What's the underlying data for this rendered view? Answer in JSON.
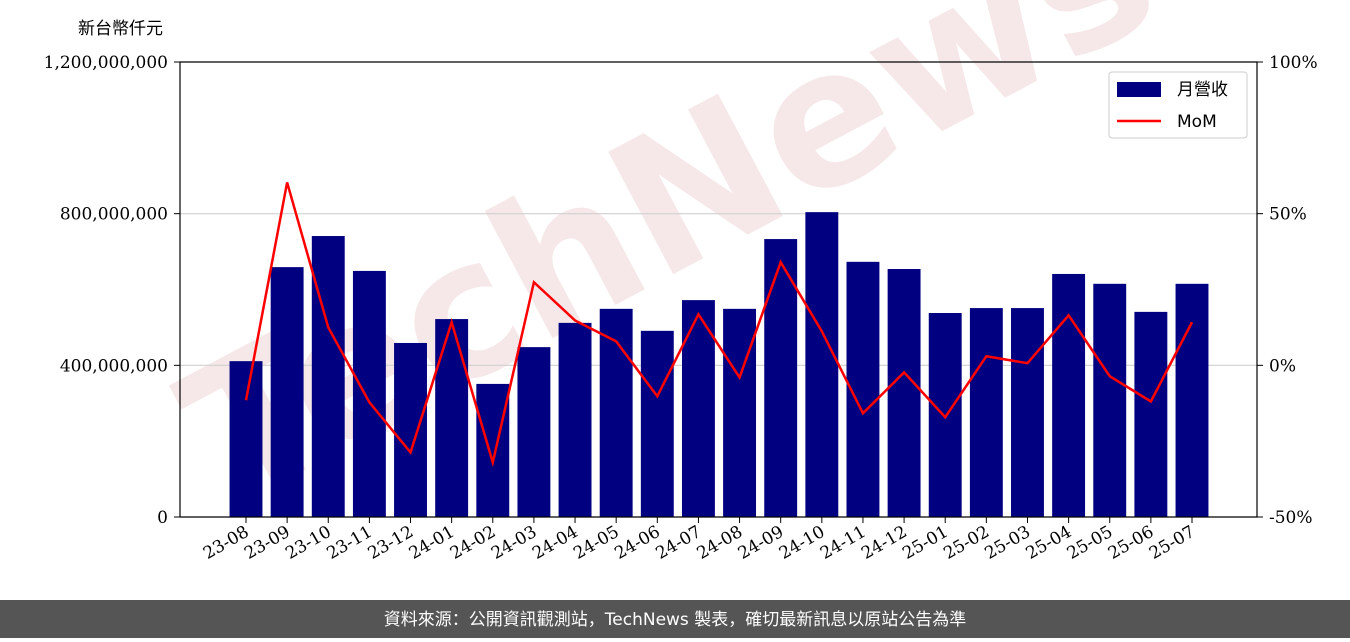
{
  "chart_data": {
    "type": "bar_line",
    "y_label": "新台幣仟元",
    "watermark": "TechNews",
    "footer": "資料來源：公開資訊觀測站，TechNews 製表，確切最新訊息以原站公告為準",
    "categories": [
      "23-08",
      "23-09",
      "23-10",
      "23-11",
      "23-12",
      "24-01",
      "24-02",
      "24-03",
      "24-04",
      "24-05",
      "24-06",
      "24-07",
      "24-08",
      "24-09",
      "24-10",
      "24-11",
      "24-12",
      "25-01",
      "25-02",
      "25-03",
      "25-04",
      "25-05",
      "25-06",
      "25-07"
    ],
    "series": [
      {
        "name": "月營收",
        "color": "#000080",
        "type": "bar",
        "values": [
          411000000,
          659000000,
          741000000,
          649000000,
          459000000,
          522000000,
          351000000,
          448000000,
          512000000,
          549000000,
          491000000,
          572000000,
          549000000,
          733000000,
          804000000,
          673000000,
          654000000,
          538000000,
          551000000,
          551000000,
          641000000,
          615000000,
          541000000,
          615000000
        ]
      },
      {
        "name": "MoM",
        "color": "#ff0000",
        "type": "line",
        "axis": "y2",
        "values": [
          -11.5,
          60.3,
          12.5,
          -12.2,
          -28.7,
          14.2,
          -32,
          27.4,
          14.8,
          7.9,
          -10.2,
          16.8,
          -4,
          34,
          11.2,
          -15.8,
          -2.3,
          -17.1,
          3,
          0.7,
          16.5,
          -3.6,
          -11.9,
          14.2
        ]
      }
    ],
    "ylim": [
      0,
      1200000000
    ],
    "yticks": [
      0,
      {
        "value": 400000000,
        "label": "400,000,000"
      },
      {
        "value": 800000000,
        "label": "800,000,000"
      },
      {
        "value": 1200000000,
        "label": "1,200,000,000"
      }
    ],
    "y2lim": [
      -50,
      100
    ],
    "y2ticks": [
      {
        "value": -50,
        "label": "-50%"
      },
      {
        "value": 0,
        "label": "0%"
      },
      {
        "value": 50,
        "label": "50%"
      },
      {
        "value": 100,
        "label": "100%"
      }
    ],
    "grid": true,
    "legend": "upper right"
  }
}
